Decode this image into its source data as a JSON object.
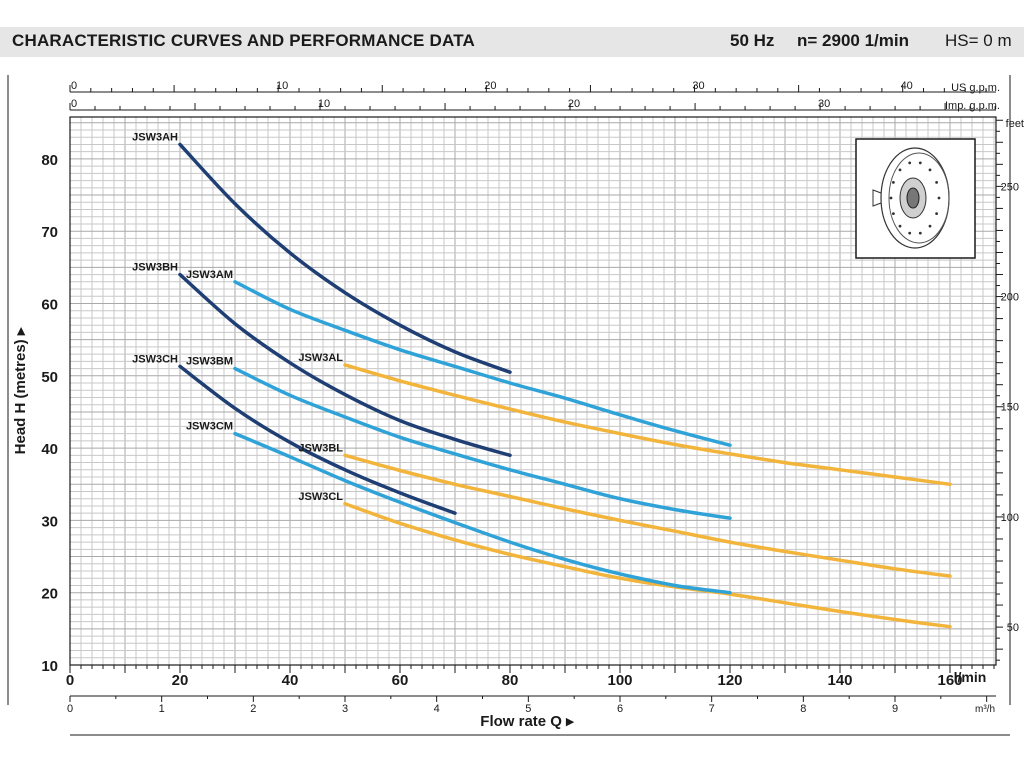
{
  "header": {
    "title": "CHARACTERISTIC CURVES AND PERFORMANCE DATA",
    "frequency": "50 Hz",
    "speed": "n= 2900  1/min",
    "hs": "HS= 0 m"
  },
  "colors": {
    "dark_blue": "#1f3f74",
    "light_blue": "#2fa3d8",
    "orange": "#f2b43a",
    "grid": "#bfbfbf",
    "header_bg": "#e6e6e6"
  },
  "thumbnail": {
    "icon": "impeller-drawing-icon"
  },
  "chart_data": {
    "type": "line",
    "title": "",
    "xlabel": "Flow rate Q",
    "ylabel": "Head H (metres)",
    "x_unit": "l/min",
    "x2_unit": "m³/h",
    "top_axis1_unit": "US g.p.m.",
    "top_axis2_unit": "Imp. g.p.m.",
    "right_axis_unit": "feet",
    "xlim": [
      0,
      160
    ],
    "ylim": [
      10,
      86
    ],
    "grid": true,
    "x_ticks": [
      0,
      20,
      40,
      60,
      80,
      100,
      120,
      140,
      160
    ],
    "y_ticks": [
      10,
      20,
      30,
      40,
      50,
      60,
      70,
      80
    ],
    "m3h_ticks": [
      0,
      1,
      2,
      3,
      4,
      5,
      6,
      7,
      8,
      9
    ],
    "us_gpm_ticks": [
      0,
      10,
      20,
      30,
      40
    ],
    "imp_gpm_ticks": [
      0,
      10,
      20,
      30
    ],
    "feet_ticks": [
      50,
      100,
      150,
      200,
      250
    ],
    "series": [
      {
        "name": "JSW3AH",
        "color": "#1f3f74",
        "x": [
          20,
          30,
          40,
          50,
          60,
          70,
          80
        ],
        "y": [
          82,
          73.8,
          67,
          61.5,
          57,
          53.3,
          50.5
        ]
      },
      {
        "name": "JSW3BH",
        "color": "#1f3f74",
        "x": [
          20,
          30,
          40,
          50,
          60,
          70,
          80
        ],
        "y": [
          64,
          57.2,
          51.8,
          47.4,
          43.8,
          41.2,
          39
        ]
      },
      {
        "name": "JSW3CH",
        "color": "#1f3f74",
        "x": [
          20,
          30,
          40,
          50,
          60,
          70
        ],
        "y": [
          51.3,
          45.5,
          40.8,
          37,
          33.8,
          31
        ]
      },
      {
        "name": "JSW3AM",
        "color": "#2fa3d8",
        "x": [
          30,
          40,
          50,
          60,
          70,
          80,
          90,
          100,
          110,
          120
        ],
        "y": [
          63,
          59.2,
          56.3,
          53.6,
          51.3,
          49,
          46.9,
          44.6,
          42.4,
          40.4
        ]
      },
      {
        "name": "JSW3BM",
        "color": "#2fa3d8",
        "x": [
          30,
          40,
          50,
          60,
          70,
          80,
          90,
          100,
          110,
          120
        ],
        "y": [
          51,
          47.3,
          44.3,
          41.5,
          39.2,
          37,
          35,
          33,
          31.5,
          30.3
        ]
      },
      {
        "name": "JSW3CM",
        "color": "#2fa3d8",
        "x": [
          30,
          40,
          50,
          60,
          70,
          80,
          90,
          100,
          110,
          120
        ],
        "y": [
          42,
          38.8,
          35.5,
          32.5,
          29.7,
          27,
          24.6,
          22.6,
          21,
          20
        ]
      },
      {
        "name": "JSW3AL",
        "color": "#f2b43a",
        "x": [
          50,
          60,
          70,
          80,
          90,
          100,
          110,
          120,
          130,
          140,
          150,
          160
        ],
        "y": [
          51.5,
          49.3,
          47.3,
          45.4,
          43.6,
          42,
          40.5,
          39.2,
          38,
          37,
          36,
          35
        ]
      },
      {
        "name": "JSW3BL",
        "color": "#f2b43a",
        "x": [
          50,
          60,
          70,
          80,
          90,
          100,
          110,
          120,
          130,
          140,
          150,
          160
        ],
        "y": [
          39,
          36.9,
          35,
          33.3,
          31.6,
          30,
          28.5,
          27,
          25.7,
          24.5,
          23.3,
          22.3
        ]
      },
      {
        "name": "JSW3CL",
        "color": "#f2b43a",
        "x": [
          50,
          60,
          70,
          80,
          90,
          100,
          110,
          120,
          130,
          140,
          150,
          160
        ],
        "y": [
          32.3,
          29.6,
          27.3,
          25.3,
          23.6,
          22,
          20.8,
          19.8,
          18.6,
          17.4,
          16.3,
          15.3
        ]
      }
    ]
  }
}
